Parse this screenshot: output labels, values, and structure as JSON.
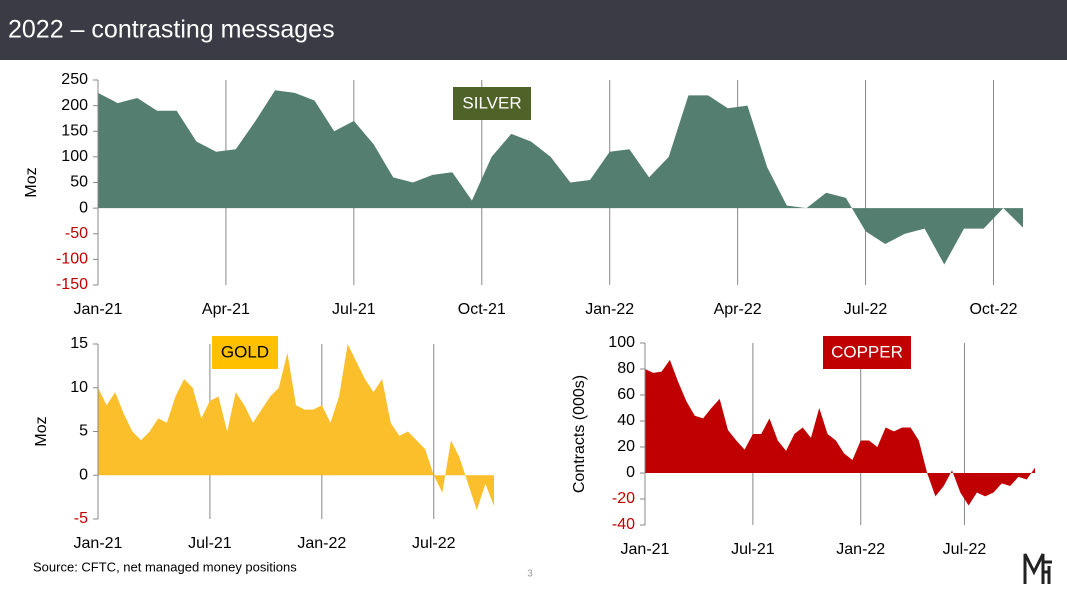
{
  "header": {
    "title": "2022 – contrasting messages"
  },
  "footer": {
    "source": "Source: CFTC, net managed money positions",
    "page": "3"
  },
  "chart_data": [
    {
      "type": "area",
      "label": "SILVER",
      "label_color": "#4f6228",
      "label_text_color": "#ffffff",
      "ylabel": "Moz",
      "color": "#537e70",
      "values": [
        225,
        205,
        215,
        190,
        190,
        130,
        110,
        115,
        170,
        230,
        225,
        210,
        150,
        170,
        125,
        60,
        50,
        65,
        70,
        15,
        100,
        145,
        130,
        100,
        50,
        55,
        110,
        115,
        60,
        100,
        220,
        220,
        195,
        200,
        80,
        5,
        0,
        30,
        20,
        -45,
        -70,
        -50,
        -40,
        -110,
        -40,
        -40,
        0,
        -38
      ],
      "xlim": [
        0,
        47
      ],
      "xticks": [
        {
          "value": 0,
          "label": "Jan-21"
        },
        {
          "value": 6.5,
          "label": "Apr-21"
        },
        {
          "value": 13,
          "label": "Jul-21"
        },
        {
          "value": 19.5,
          "label": "Oct-21"
        },
        {
          "value": 26,
          "label": "Jan-22"
        },
        {
          "value": 32.5,
          "label": "Apr-22"
        },
        {
          "value": 39,
          "label": "Jul-22"
        },
        {
          "value": 45.5,
          "label": "Oct-22"
        }
      ],
      "ylim": [
        -150,
        250
      ],
      "yticks": [
        -150,
        -100,
        -50,
        0,
        50,
        100,
        150,
        200,
        250
      ],
      "negative_tick_color": "#c00000",
      "grid": "x"
    },
    {
      "type": "area",
      "label": "GOLD",
      "label_color": "#ffc000",
      "label_text_color": "#000000",
      "ylabel": "Moz",
      "color": "#fbbf2c",
      "values": [
        10,
        8,
        9.5,
        7,
        5,
        4,
        5,
        6.5,
        6,
        9,
        11,
        10,
        6.5,
        8.5,
        9,
        5,
        9.5,
        8,
        6,
        7.5,
        9,
        10,
        14,
        8,
        7.5,
        7.5,
        8,
        6,
        9,
        15,
        13,
        11,
        9.5,
        11,
        6,
        4.5,
        5,
        4,
        3,
        0,
        -2,
        4,
        2,
        -1,
        -4,
        -1,
        -3.5
      ],
      "xlim": [
        0,
        46
      ],
      "xticks": [
        {
          "value": 0,
          "label": "Jan-21"
        },
        {
          "value": 13,
          "label": "Jul-21"
        },
        {
          "value": 26,
          "label": "Jan-22"
        },
        {
          "value": 39,
          "label": "Jul-22"
        }
      ],
      "ylim": [
        -5,
        15
      ],
      "yticks": [
        -5,
        0,
        5,
        10,
        15
      ],
      "negative_tick_color": "#c00000",
      "grid": "x"
    },
    {
      "type": "area",
      "label": "COPPER",
      "label_color": "#c00000",
      "label_text_color": "#ffffff",
      "ylabel": "Contracts (000s)",
      "color": "#c00000",
      "values": [
        80,
        77,
        78,
        87,
        70,
        55,
        44,
        42,
        50,
        57,
        33,
        25,
        18,
        30,
        30,
        42,
        25,
        17,
        30,
        35,
        27,
        50,
        30,
        25,
        15,
        10,
        25,
        25,
        20,
        35,
        32,
        35,
        35,
        25,
        0,
        -18,
        -10,
        2,
        -15,
        -25,
        -15,
        -18,
        -15,
        -8,
        -10,
        -3,
        -5,
        4
      ],
      "xlim": [
        0,
        47
      ],
      "xticks": [
        {
          "value": 0,
          "label": "Jan-21"
        },
        {
          "value": 13,
          "label": "Jul-21"
        },
        {
          "value": 26,
          "label": "Jan-22"
        },
        {
          "value": 38.5,
          "label": "Jul-22"
        }
      ],
      "ylim": [
        -40,
        100
      ],
      "yticks": [
        -40,
        -20,
        0,
        20,
        40,
        60,
        80,
        100
      ],
      "negative_tick_color": "#c00000",
      "grid": "x"
    }
  ]
}
